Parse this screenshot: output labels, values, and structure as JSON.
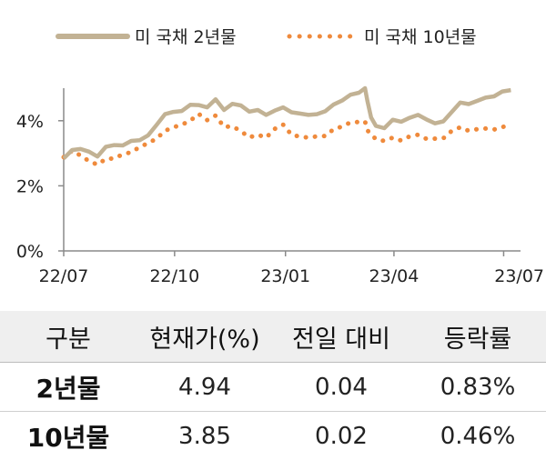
{
  "chart_data": {
    "type": "line",
    "title": "",
    "xlabel": "",
    "ylabel": "",
    "x_ticks": [
      "22/07",
      "22/10",
      "23/01",
      "23/04",
      "23/07"
    ],
    "y_ticks": [
      "0%",
      "2%",
      "4%"
    ],
    "ylim": [
      0,
      5
    ],
    "xlim": [
      "2022-07-01",
      "2023-07-15"
    ],
    "grid": false,
    "legend_position": "top",
    "series": [
      {
        "name": "미 국채 2년물",
        "style": "solid",
        "color": "#c2b294",
        "points": [
          [
            "2022-07-01",
            2.84
          ],
          [
            "2022-07-08",
            3.1
          ],
          [
            "2022-07-15",
            3.13
          ],
          [
            "2022-07-22",
            3.05
          ],
          [
            "2022-07-29",
            2.9
          ],
          [
            "2022-08-05",
            3.2
          ],
          [
            "2022-08-12",
            3.25
          ],
          [
            "2022-08-19",
            3.24
          ],
          [
            "2022-08-26",
            3.38
          ],
          [
            "2022-09-02",
            3.4
          ],
          [
            "2022-09-09",
            3.55
          ],
          [
            "2022-09-16",
            3.87
          ],
          [
            "2022-09-23",
            4.2
          ],
          [
            "2022-09-30",
            4.27
          ],
          [
            "2022-10-07",
            4.3
          ],
          [
            "2022-10-14",
            4.49
          ],
          [
            "2022-10-21",
            4.48
          ],
          [
            "2022-10-28",
            4.41
          ],
          [
            "2022-11-04",
            4.66
          ],
          [
            "2022-11-11",
            4.33
          ],
          [
            "2022-11-18",
            4.52
          ],
          [
            "2022-11-25",
            4.47
          ],
          [
            "2022-12-02",
            4.28
          ],
          [
            "2022-12-09",
            4.33
          ],
          [
            "2022-12-16",
            4.18
          ],
          [
            "2022-12-23",
            4.31
          ],
          [
            "2022-12-30",
            4.41
          ],
          [
            "2023-01-06",
            4.26
          ],
          [
            "2023-01-13",
            4.22
          ],
          [
            "2023-01-20",
            4.18
          ],
          [
            "2023-01-27",
            4.2
          ],
          [
            "2023-02-03",
            4.29
          ],
          [
            "2023-02-10",
            4.5
          ],
          [
            "2023-02-17",
            4.62
          ],
          [
            "2023-02-24",
            4.8
          ],
          [
            "2023-03-03",
            4.86
          ],
          [
            "2023-03-08",
            5.0
          ],
          [
            "2023-03-10",
            4.6
          ],
          [
            "2023-03-13",
            4.1
          ],
          [
            "2023-03-17",
            3.84
          ],
          [
            "2023-03-24",
            3.77
          ],
          [
            "2023-03-31",
            4.03
          ],
          [
            "2023-04-07",
            3.97
          ],
          [
            "2023-04-14",
            4.09
          ],
          [
            "2023-04-21",
            4.18
          ],
          [
            "2023-04-28",
            4.04
          ],
          [
            "2023-05-05",
            3.92
          ],
          [
            "2023-05-12",
            3.98
          ],
          [
            "2023-05-19",
            4.27
          ],
          [
            "2023-05-26",
            4.56
          ],
          [
            "2023-06-02",
            4.51
          ],
          [
            "2023-06-09",
            4.61
          ],
          [
            "2023-06-16",
            4.71
          ],
          [
            "2023-06-23",
            4.75
          ],
          [
            "2023-06-30",
            4.9
          ],
          [
            "2023-07-07",
            4.94
          ]
        ]
      },
      {
        "name": "미 국채 10년물",
        "style": "dotted",
        "color": "#ef8a3c",
        "points": [
          [
            "2022-07-01",
            2.88
          ],
          [
            "2022-07-08",
            3.08
          ],
          [
            "2022-07-15",
            2.93
          ],
          [
            "2022-07-22",
            2.76
          ],
          [
            "2022-07-29",
            2.65
          ],
          [
            "2022-08-05",
            2.83
          ],
          [
            "2022-08-12",
            2.84
          ],
          [
            "2022-08-19",
            2.97
          ],
          [
            "2022-08-26",
            3.03
          ],
          [
            "2022-09-02",
            3.19
          ],
          [
            "2022-09-09",
            3.31
          ],
          [
            "2022-09-16",
            3.45
          ],
          [
            "2022-09-23",
            3.69
          ],
          [
            "2022-09-30",
            3.8
          ],
          [
            "2022-10-07",
            3.88
          ],
          [
            "2022-10-14",
            4.0
          ],
          [
            "2022-10-21",
            4.21
          ],
          [
            "2022-10-28",
            4.02
          ],
          [
            "2022-11-04",
            4.16
          ],
          [
            "2022-11-11",
            3.81
          ],
          [
            "2022-11-18",
            3.83
          ],
          [
            "2022-11-25",
            3.68
          ],
          [
            "2022-12-02",
            3.49
          ],
          [
            "2022-12-09",
            3.57
          ],
          [
            "2022-12-16",
            3.48
          ],
          [
            "2022-12-23",
            3.75
          ],
          [
            "2022-12-30",
            3.88
          ],
          [
            "2023-01-06",
            3.57
          ],
          [
            "2023-01-13",
            3.51
          ],
          [
            "2023-01-20",
            3.48
          ],
          [
            "2023-01-27",
            3.52
          ],
          [
            "2023-02-03",
            3.53
          ],
          [
            "2023-02-10",
            3.74
          ],
          [
            "2023-02-17",
            3.82
          ],
          [
            "2023-02-24",
            3.95
          ],
          [
            "2023-03-03",
            3.96
          ],
          [
            "2023-03-08",
            3.98
          ],
          [
            "2023-03-10",
            3.7
          ],
          [
            "2023-03-17",
            3.43
          ],
          [
            "2023-03-24",
            3.38
          ],
          [
            "2023-03-31",
            3.48
          ],
          [
            "2023-04-07",
            3.39
          ],
          [
            "2023-04-14",
            3.52
          ],
          [
            "2023-04-21",
            3.57
          ],
          [
            "2023-04-28",
            3.44
          ],
          [
            "2023-05-05",
            3.45
          ],
          [
            "2023-05-12",
            3.46
          ],
          [
            "2023-05-19",
            3.69
          ],
          [
            "2023-05-26",
            3.8
          ],
          [
            "2023-06-02",
            3.69
          ],
          [
            "2023-06-09",
            3.74
          ],
          [
            "2023-06-16",
            3.76
          ],
          [
            "2023-06-23",
            3.73
          ],
          [
            "2023-06-30",
            3.81
          ],
          [
            "2023-07-07",
            3.85
          ]
        ]
      }
    ]
  },
  "table": {
    "headers": [
      "구분",
      "현재가(%)",
      "전일 대비",
      "등락률"
    ],
    "rows": [
      [
        "2년물",
        "4.94",
        "0.04",
        "0.83%"
      ],
      [
        "10년물",
        "3.85",
        "0.02",
        "0.46%"
      ]
    ]
  }
}
